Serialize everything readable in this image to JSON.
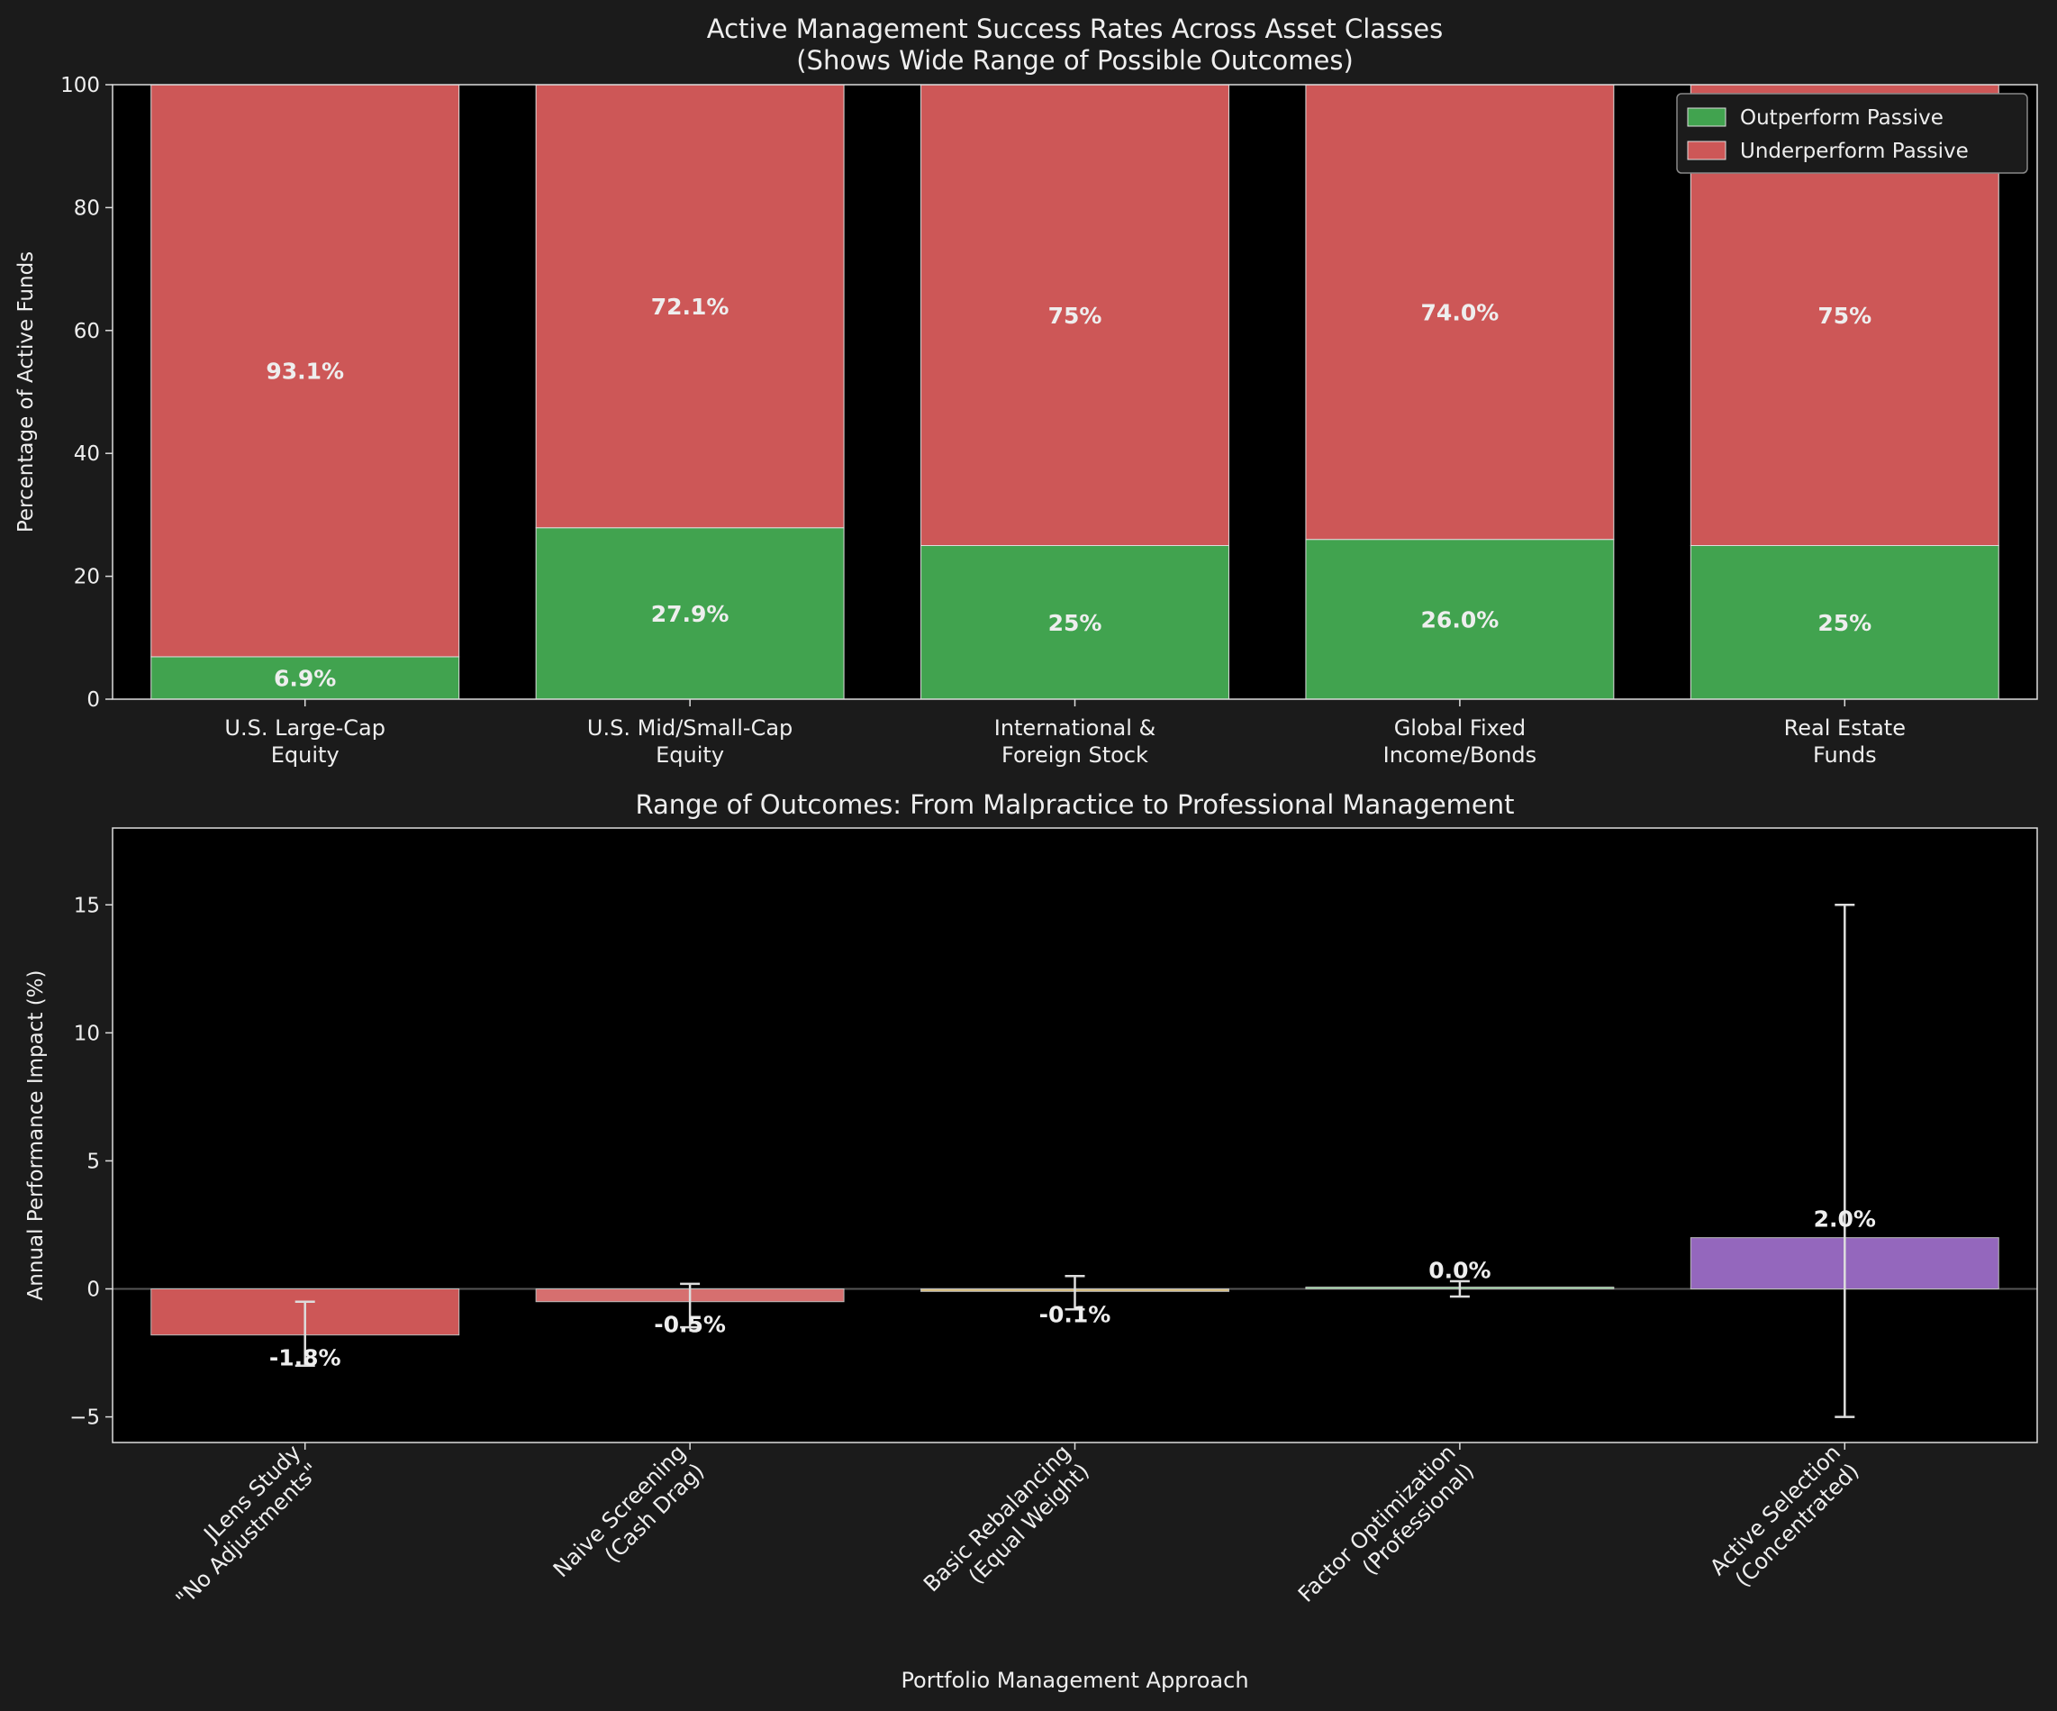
{
  "chart_data": [
    {
      "type": "bar",
      "stacked": true,
      "title": "Active Management Success Rates Across Asset Classes\n(Shows Wide Range of Possible Outcomes)",
      "xlabel": "",
      "ylabel": "Percentage of Active Funds",
      "ylim": [
        0,
        100
      ],
      "yticks": [
        0,
        20,
        40,
        60,
        80,
        100
      ],
      "categories": [
        "U.S. Large-Cap\nEquity",
        "U.S. Mid/Small-Cap\nEquity",
        "International &\nForeign Stock",
        "Global Fixed\nIncome/Bonds",
        "Real Estate\nFunds"
      ],
      "series": [
        {
          "name": "Outperform Passive",
          "values": [
            6.9,
            27.9,
            25,
            26.0,
            25
          ],
          "labels": [
            "6.9%",
            "27.9%",
            "25%",
            "26.0%",
            "25%"
          ],
          "color": "#41a34f"
        },
        {
          "name": "Underperform Passive",
          "values": [
            93.1,
            72.1,
            75,
            74.0,
            75
          ],
          "labels": [
            "93.1%",
            "72.1%",
            "75%",
            "74.0%",
            "75%"
          ],
          "color": "#cd5757"
        }
      ],
      "legend_position": "top-right",
      "grid": false
    },
    {
      "type": "bar",
      "title": "Range of Outcomes: From Malpractice to Professional Management",
      "xlabel": "Portfolio Management Approach",
      "ylabel": "Annual Performance Impact (%)",
      "ylim": [
        -6,
        18
      ],
      "yticks": [
        -5,
        0,
        5,
        10,
        15
      ],
      "ytick_labels": [
        "−5",
        "0",
        "5",
        "10",
        "15"
      ],
      "categories": [
        "JLens Study\n\"No Adjustments\"",
        "Naive Screening\n(Cash Drag)",
        "Basic Rebalancing\n(Equal Weight)",
        "Factor Optimization\n(Professional)",
        "Active Selection\n(Concentrated)"
      ],
      "values": [
        -1.8,
        -0.5,
        -0.1,
        0.0,
        2.0
      ],
      "labels": [
        "-1.8%",
        "-0.5%",
        "-0.1%",
        "0.0%",
        "2.0%"
      ],
      "error_low": [
        -3.0,
        -1.5,
        -0.8,
        -0.3,
        -5.0
      ],
      "error_high": [
        -0.5,
        0.2,
        0.5,
        0.3,
        15.0
      ],
      "colors": [
        "#cd5757",
        "#d66f6f",
        "#d9c080",
        "#7bc285",
        "#9467bd"
      ],
      "grid": false
    }
  ]
}
